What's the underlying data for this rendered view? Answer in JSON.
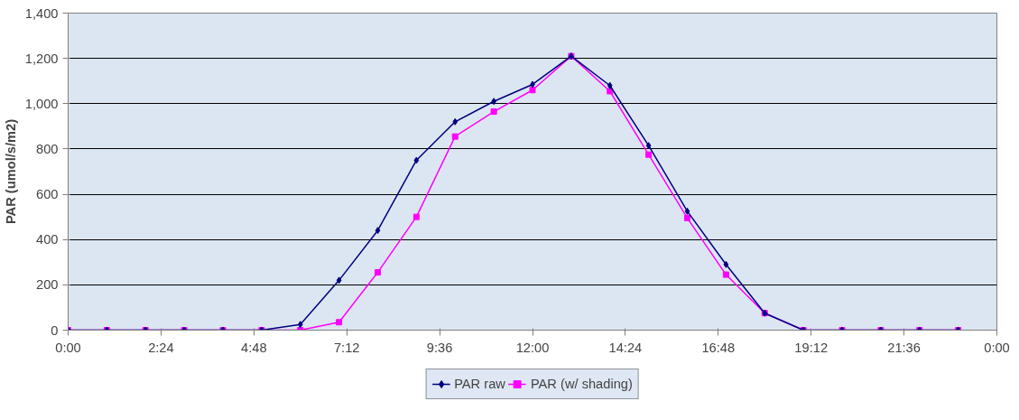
{
  "chart_data": {
    "type": "line",
    "ylabel": "PAR (umol/s/m2)",
    "x": [
      0,
      1,
      2,
      3,
      4,
      5,
      6,
      7,
      8,
      9,
      10,
      11,
      12,
      13,
      14,
      15,
      16,
      17,
      18,
      19,
      20,
      21,
      22,
      23
    ],
    "series": [
      {
        "name": "PAR raw",
        "color": "#000080",
        "marker": "diamond",
        "values": [
          0,
          0,
          0,
          0,
          0,
          0,
          25,
          220,
          440,
          750,
          920,
          1010,
          1085,
          1210,
          1080,
          815,
          525,
          290,
          75,
          0,
          0,
          0,
          0,
          0
        ]
      },
      {
        "name": "PAR (w/ shading)",
        "color": "#ff00ff",
        "marker": "square",
        "values": [
          0,
          0,
          0,
          0,
          0,
          0,
          0,
          35,
          255,
          500,
          855,
          965,
          1060,
          1210,
          1055,
          775,
          495,
          245,
          75,
          0,
          0,
          0,
          0,
          0
        ]
      }
    ],
    "xlim": [
      0,
      24
    ],
    "xticks": [
      {
        "value": 0,
        "label": "0:00"
      },
      {
        "value": 2.4,
        "label": "2:24"
      },
      {
        "value": 4.8,
        "label": "4:48"
      },
      {
        "value": 7.2,
        "label": "7:12"
      },
      {
        "value": 9.6,
        "label": "9:36"
      },
      {
        "value": 12,
        "label": "12:00"
      },
      {
        "value": 14.4,
        "label": "14:24"
      },
      {
        "value": 16.8,
        "label": "16:48"
      },
      {
        "value": 19.2,
        "label": "19:12"
      },
      {
        "value": 21.6,
        "label": "21:36"
      },
      {
        "value": 24,
        "label": "0:00"
      }
    ],
    "ylim": [
      0,
      1400
    ],
    "yticks": [
      {
        "value": 0,
        "label": "0"
      },
      {
        "value": 200,
        "label": "200"
      },
      {
        "value": 400,
        "label": "400"
      },
      {
        "value": 600,
        "label": "600"
      },
      {
        "value": 800,
        "label": "800"
      },
      {
        "value": 1000,
        "label": "1,000"
      },
      {
        "value": 1200,
        "label": "1,200"
      },
      {
        "value": 1400,
        "label": "1,400"
      }
    ],
    "grid": "y",
    "legend": "bottom",
    "line_style": "solid"
  }
}
